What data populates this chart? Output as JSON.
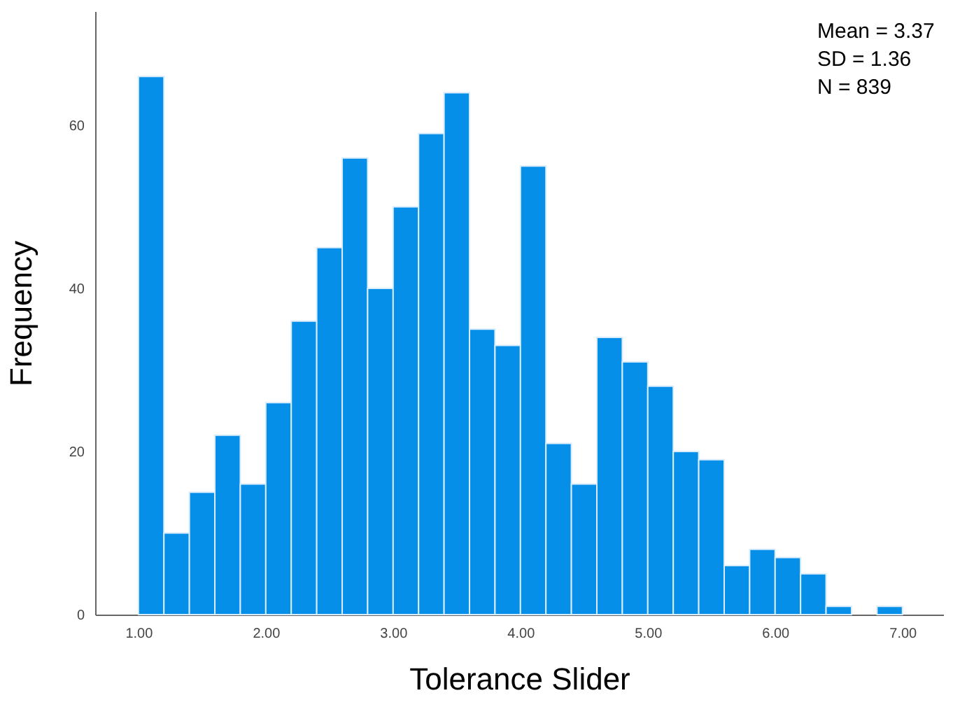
{
  "chart_data": {
    "type": "histogram",
    "xlabel": "Tolerance Slider",
    "ylabel": "Frequency",
    "color": "#068fe8",
    "bins": [
      1.0,
      1.2,
      1.4,
      1.6,
      1.8,
      2.0,
      2.2,
      2.4,
      2.6,
      2.8,
      3.0,
      3.2,
      3.4,
      3.6,
      3.8,
      4.0,
      4.2,
      4.4,
      4.6,
      4.8,
      5.0,
      5.2,
      5.4,
      5.6,
      5.8,
      6.0,
      6.2,
      6.4,
      6.6,
      6.8,
      7.0
    ],
    "values": [
      66,
      10,
      15,
      22,
      16,
      26,
      36,
      45,
      56,
      40,
      50,
      59,
      64,
      35,
      33,
      55,
      21,
      16,
      34,
      31,
      28,
      20,
      19,
      6,
      8,
      7,
      5,
      1,
      0,
      1
    ],
    "xlim": [
      0.66,
      7.32
    ],
    "ylim": [
      0,
      74
    ],
    "xticks": [
      {
        "value": 1,
        "label": "1.00"
      },
      {
        "value": 2,
        "label": "2.00"
      },
      {
        "value": 3,
        "label": "3.00"
      },
      {
        "value": 4,
        "label": "4.00"
      },
      {
        "value": 5,
        "label": "5.00"
      },
      {
        "value": 6,
        "label": "6.00"
      },
      {
        "value": 7,
        "label": "7.00"
      }
    ],
    "yticks": [
      0,
      20,
      40,
      60
    ],
    "annotations": [
      "Mean = 3.37",
      "SD = 1.36",
      "N = 839"
    ]
  }
}
